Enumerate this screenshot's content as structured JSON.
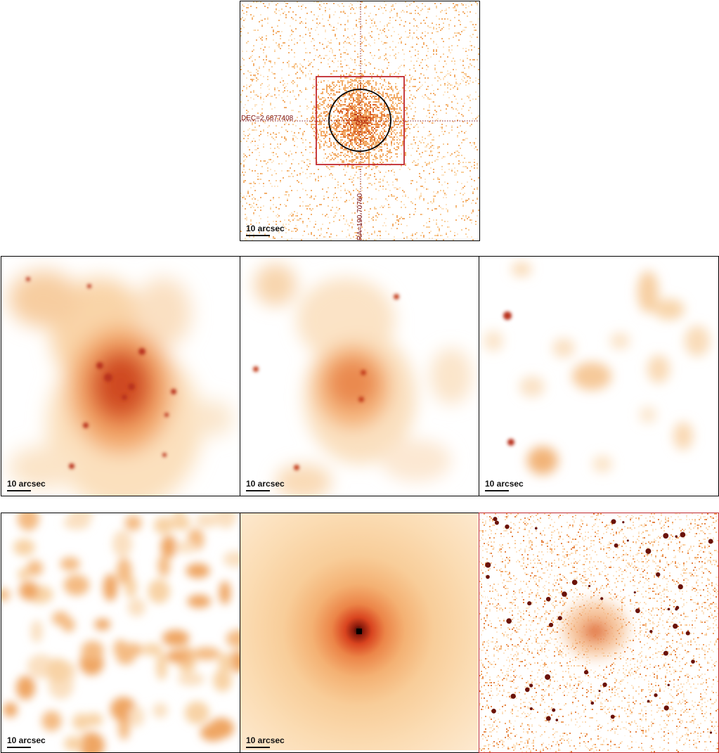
{
  "scale_label": "10 arcsec",
  "top_panel": {
    "dec_label": "DEC=2.6877408",
    "ra_label": "RA=190.70760"
  },
  "colors": {
    "frame": "#000000",
    "box": "#c0272d",
    "crosshair": "#8a1a1a",
    "circle": "#000000"
  }
}
